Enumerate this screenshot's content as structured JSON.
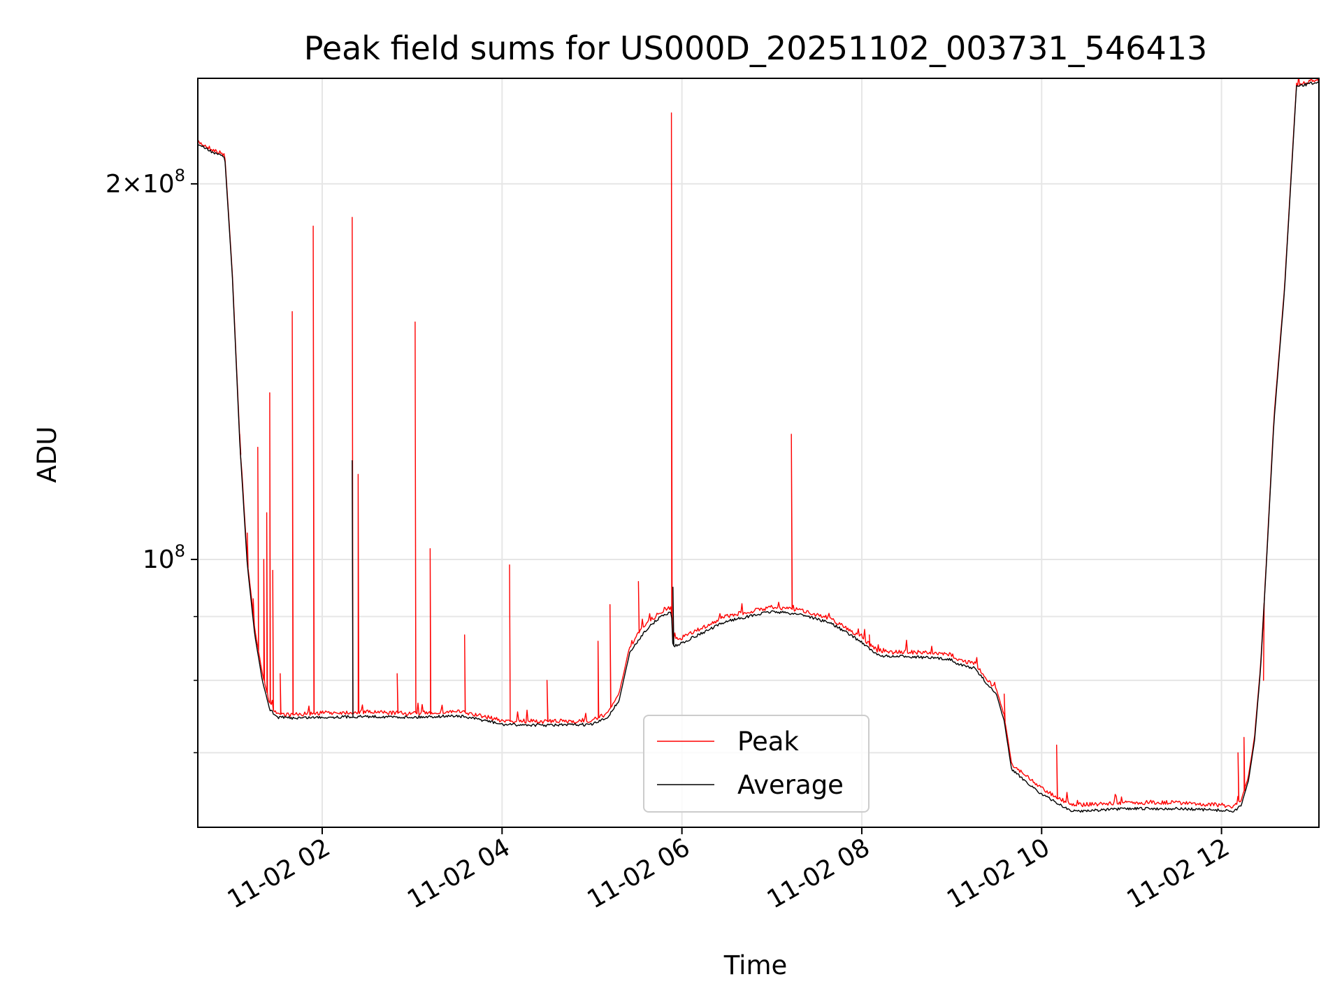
{
  "chart_data": {
    "type": "line",
    "title": "Peak field sums for US000D_20251102_003731_546413",
    "xlabel": "Time",
    "ylabel": "ADU",
    "yscale": "log",
    "grid": true,
    "legend_position": "lower-center",
    "xlim": [
      "2025-11-02 00:37",
      "2025-11-02 13:05"
    ],
    "ylim": [
      61000000,
      243000000
    ],
    "x_ticks": [
      "11-02 02",
      "11-02 04",
      "11-02 06",
      "11-02 08",
      "11-02 10",
      "11-02 12"
    ],
    "x_tick_values": [
      "2025-11-02 02:00",
      "2025-11-02 04:00",
      "2025-11-02 06:00",
      "2025-11-02 08:00",
      "2025-11-02 10:00",
      "2025-11-02 12:00"
    ],
    "y_major_ticks": [
      {
        "value": 100000000,
        "mantissa": "",
        "exp": "8"
      },
      {
        "value": 200000000,
        "mantissa": "2",
        "exp": "8"
      }
    ],
    "y_minor_ticks": [
      70000000,
      80000000,
      90000000
    ],
    "series": [
      {
        "name": "Peak",
        "color": "#ff0000",
        "x": [
          "2025-11-02 00:37",
          "2025-11-02 00:50",
          "2025-11-02 00:55",
          "2025-11-02 01:00",
          "2025-11-02 01:05",
          "2025-11-02 01:10",
          "2025-11-02 01:15",
          "2025-11-02 01:20",
          "2025-11-02 01:25",
          "2025-11-02 01:30",
          "2025-11-02 01:40",
          "2025-11-02 02:00",
          "2025-11-02 02:30",
          "2025-11-02 03:00",
          "2025-11-02 03:30",
          "2025-11-02 03:50",
          "2025-11-02 04:00",
          "2025-11-02 04:30",
          "2025-11-02 05:00",
          "2025-11-02 05:10",
          "2025-11-02 05:18",
          "2025-11-02 05:25",
          "2025-11-02 05:35",
          "2025-11-02 05:45",
          "2025-11-02 05:53",
          "2025-11-02 05:54",
          "2025-11-02 06:00",
          "2025-11-02 06:30",
          "2025-11-02 07:00",
          "2025-11-02 07:20",
          "2025-11-02 07:40",
          "2025-11-02 08:00",
          "2025-11-02 08:10",
          "2025-11-02 08:20",
          "2025-11-02 08:30",
          "2025-11-02 09:00",
          "2025-11-02 09:05",
          "2025-11-02 09:15",
          "2025-11-02 09:30",
          "2025-11-02 09:35",
          "2025-11-02 09:40",
          "2025-11-02 10:00",
          "2025-11-02 10:20",
          "2025-11-02 11:00",
          "2025-11-02 11:30",
          "2025-11-02 12:00",
          "2025-11-02 12:08",
          "2025-11-02 12:13",
          "2025-11-02 12:18",
          "2025-11-02 12:22",
          "2025-11-02 12:26",
          "2025-11-02 12:30",
          "2025-11-02 12:35",
          "2025-11-02 12:42",
          "2025-11-02 12:50",
          "2025-11-02 13:05"
        ],
        "y": [
          216000000,
          212000000,
          211000000,
          170000000,
          125000000,
          100000000,
          88000000,
          81000000,
          76500000,
          75200000,
          75000000,
          75300000,
          75400000,
          75200000,
          75500000,
          74700000,
          74200000,
          74100000,
          74200000,
          75200000,
          78000000,
          85000000,
          88500000,
          90500000,
          91500000,
          86000000,
          86500000,
          90000000,
          91500000,
          91000000,
          89500000,
          86500000,
          84500000,
          84200000,
          84300000,
          83800000,
          83000000,
          82500000,
          78500000,
          75000000,
          68500000,
          65500000,
          63500000,
          63800000,
          63800000,
          63500000,
          63300000,
          64000000,
          67000000,
          72000000,
          82000000,
          100000000,
          130000000,
          165000000,
          240000000,
          242000000
        ]
      },
      {
        "name": "Average",
        "color": "#000000",
        "x": [
          "2025-11-02 00:37",
          "2025-11-02 00:50",
          "2025-11-02 00:55",
          "2025-11-02 01:00",
          "2025-11-02 01:05",
          "2025-11-02 01:10",
          "2025-11-02 01:15",
          "2025-11-02 01:20",
          "2025-11-02 01:25",
          "2025-11-02 01:30",
          "2025-11-02 01:40",
          "2025-11-02 02:00",
          "2025-11-02 02:30",
          "2025-11-02 03:00",
          "2025-11-02 03:30",
          "2025-11-02 03:50",
          "2025-11-02 04:00",
          "2025-11-02 04:30",
          "2025-11-02 05:00",
          "2025-11-02 05:10",
          "2025-11-02 05:18",
          "2025-11-02 05:25",
          "2025-11-02 05:35",
          "2025-11-02 05:45",
          "2025-11-02 05:53",
          "2025-11-02 05:54",
          "2025-11-02 06:00",
          "2025-11-02 06:30",
          "2025-11-02 07:00",
          "2025-11-02 07:20",
          "2025-11-02 07:40",
          "2025-11-02 08:00",
          "2025-11-02 08:10",
          "2025-11-02 08:20",
          "2025-11-02 08:30",
          "2025-11-02 09:00",
          "2025-11-02 09:05",
          "2025-11-02 09:15",
          "2025-11-02 09:30",
          "2025-11-02 09:35",
          "2025-11-02 09:40",
          "2025-11-02 10:00",
          "2025-11-02 10:20",
          "2025-11-02 11:00",
          "2025-11-02 11:30",
          "2025-11-02 12:00",
          "2025-11-02 12:08",
          "2025-11-02 12:13",
          "2025-11-02 12:18",
          "2025-11-02 12:22",
          "2025-11-02 12:26",
          "2025-11-02 12:30",
          "2025-11-02 12:35",
          "2025-11-02 12:42",
          "2025-11-02 12:50",
          "2025-11-02 13:05"
        ],
        "y": [
          215000000,
          211000000,
          210000000,
          169000000,
          124000000,
          99000000,
          87000000,
          80000000,
          75800000,
          74700000,
          74600000,
          74700000,
          74800000,
          74700000,
          74900000,
          74200000,
          73700000,
          73600000,
          73700000,
          74600000,
          77000000,
          84000000,
          87500000,
          89800000,
          90800000,
          85000000,
          85700000,
          89200000,
          90800000,
          90300000,
          88800000,
          85800000,
          83800000,
          83500000,
          83600000,
          83100000,
          82300000,
          81800000,
          77800000,
          74200000,
          67800000,
          64800000,
          62800000,
          63100000,
          63100000,
          62900000,
          62800000,
          63400000,
          66500000,
          71500000,
          81500000,
          99500000,
          129000000,
          164000000,
          239000000,
          241500000
        ]
      }
    ],
    "peak_spikes": [
      {
        "x": "2025-11-02 01:05",
        "y": 126000000
      },
      {
        "x": "2025-11-02 01:10",
        "y": 105000000
      },
      {
        "x": "2025-11-02 01:14",
        "y": 93000000
      },
      {
        "x": "2025-11-02 01:17",
        "y": 123000000
      },
      {
        "x": "2025-11-02 01:21",
        "y": 100000000
      },
      {
        "x": "2025-11-02 01:23",
        "y": 109000000
      },
      {
        "x": "2025-11-02 01:25",
        "y": 136000000
      },
      {
        "x": "2025-11-02 01:27",
        "y": 98000000
      },
      {
        "x": "2025-11-02 01:32",
        "y": 81000000
      },
      {
        "x": "2025-11-02 01:40",
        "y": 158000000
      },
      {
        "x": "2025-11-02 01:54",
        "y": 185000000
      },
      {
        "x": "2025-11-02 02:20",
        "y": 188000000
      },
      {
        "x": "2025-11-02 02:24",
        "y": 117000000
      },
      {
        "x": "2025-11-02 02:50",
        "y": 81000000
      },
      {
        "x": "2025-11-02 03:02",
        "y": 155000000
      },
      {
        "x": "2025-11-02 03:12",
        "y": 102000000
      },
      {
        "x": "2025-11-02 03:35",
        "y": 87000000
      },
      {
        "x": "2025-11-02 04:05",
        "y": 99000000
      },
      {
        "x": "2025-11-02 04:30",
        "y": 80000000
      },
      {
        "x": "2025-11-02 05:04",
        "y": 86000000
      },
      {
        "x": "2025-11-02 05:12",
        "y": 92000000
      },
      {
        "x": "2025-11-02 05:31",
        "y": 96000000
      },
      {
        "x": "2025-11-02 05:53",
        "y": 228000000
      },
      {
        "x": "2025-11-02 07:13",
        "y": 126000000
      },
      {
        "x": "2025-11-02 08:05",
        "y": 87000000
      },
      {
        "x": "2025-11-02 09:35",
        "y": 78000000
      },
      {
        "x": "2025-11-02 10:10",
        "y": 71000000
      },
      {
        "x": "2025-11-02 12:11",
        "y": 70000000
      },
      {
        "x": "2025-11-02 12:15",
        "y": 72000000
      },
      {
        "x": "2025-11-02 12:28",
        "y": 80000000
      }
    ],
    "average_spikes": [
      {
        "x": "2025-11-02 02:20",
        "y": 120000000
      },
      {
        "x": "2025-11-02 05:54",
        "y": 95000000
      }
    ]
  }
}
